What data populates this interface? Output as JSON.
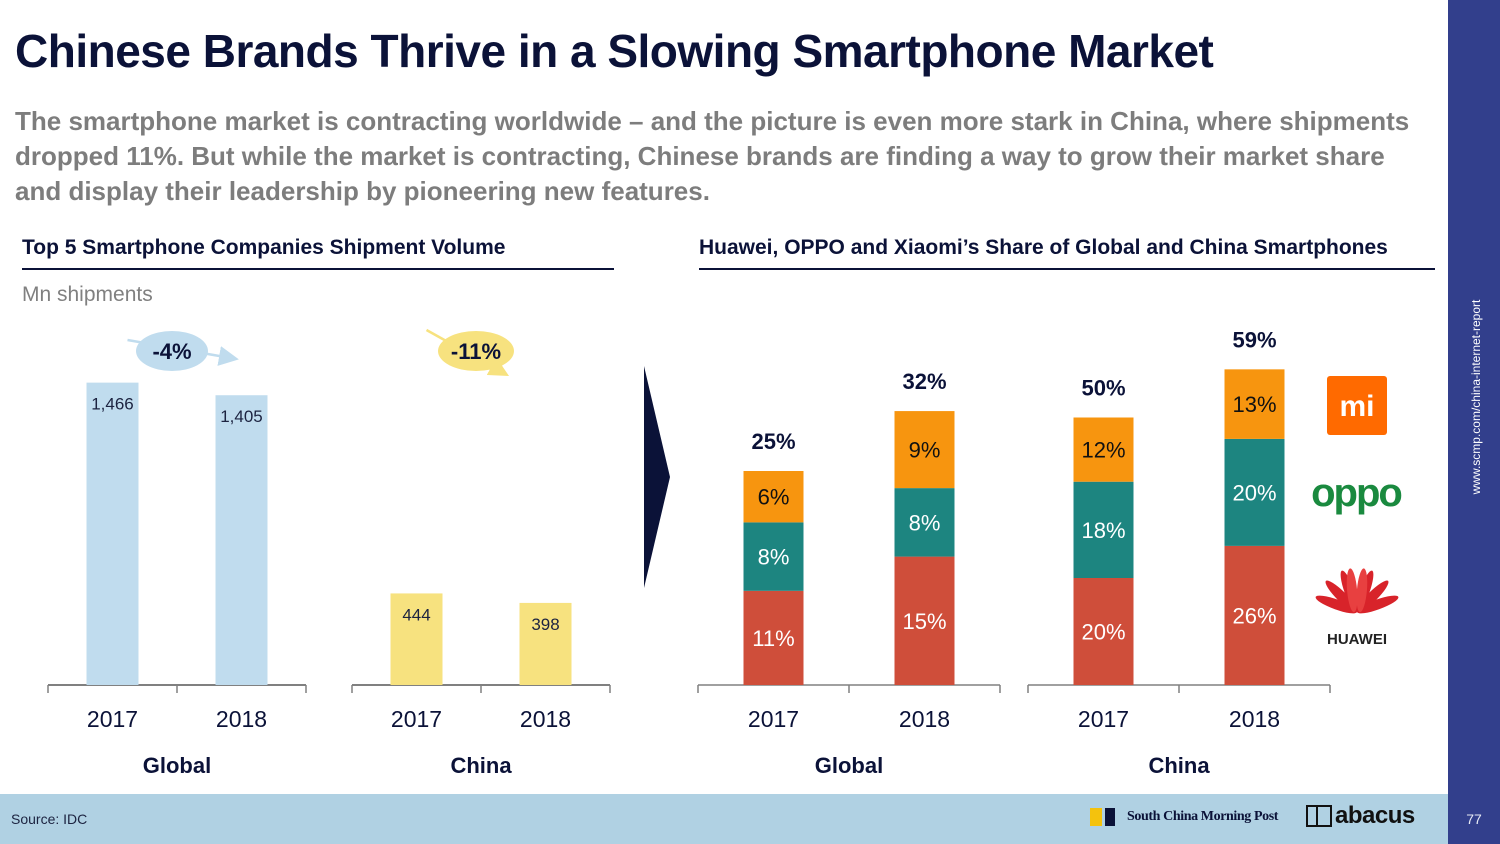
{
  "page": {
    "title": "Chinese Brands Thrive in a Slowing Smartphone Market",
    "subtitle": "The smartphone market is contracting worldwide – and the picture is even more stark in China, where shipments dropped 11%. But while the market is contracting, Chinese brands are finding a way to grow their market share and display their leadership by pioneering new features.",
    "sidebar_url": "www.scmp.com/china-internet-report",
    "source": "Source: IDC",
    "page_number": "77",
    "footer_brand": "South China Morning Post",
    "footer_brand2": "abacus",
    "colors": {
      "navy": "#0b1238",
      "sidebar": "#323f8c",
      "footer": "#b0d1e3",
      "global_bar": "#c0dcee",
      "china_bar": "#f7e27f",
      "huawei": "#cf4e3a",
      "oppo": "#1d8580",
      "xiaomi": "#f7950f"
    }
  },
  "chart_data": [
    {
      "type": "bar",
      "title": "Top 5 Smartphone Companies Shipment Volume",
      "ylabel": "Mn shipments",
      "ylim": [
        0,
        1600
      ],
      "groups": [
        {
          "name": "Global",
          "categories": [
            "2017",
            "2018"
          ],
          "values": [
            1466,
            1405
          ],
          "value_labels": [
            "1,466",
            "1,405"
          ],
          "change_label": "-4%",
          "color": "#c0dcee",
          "bubble_color": "#c0dcee"
        },
        {
          "name": "China",
          "categories": [
            "2017",
            "2018"
          ],
          "values": [
            444,
            398
          ],
          "value_labels": [
            "444",
            "398"
          ],
          "change_label": "-11%",
          "color": "#f7e27f",
          "bubble_color": "#f7e27f"
        }
      ]
    },
    {
      "type": "bar",
      "stacked": true,
      "title": "Huawei, OPPO and Xiaomi’s Share of Global and China Smartphones",
      "ylim": [
        0,
        70
      ],
      "series": [
        {
          "name": "Huawei",
          "color": "#cf4e3a",
          "label_color": "#ffffff"
        },
        {
          "name": "OPPO",
          "color": "#1d8580",
          "label_color": "#ffffff"
        },
        {
          "name": "Xiaomi",
          "color": "#f7950f",
          "label_color": "#111111"
        }
      ],
      "groups": [
        {
          "name": "Global",
          "categories": [
            "2017",
            "2018"
          ],
          "values": {
            "Huawei": [
              11,
              15
            ],
            "OPPO": [
              8,
              8
            ],
            "Xiaomi": [
              6,
              9
            ]
          },
          "totals": [
            "25%",
            "32%"
          ]
        },
        {
          "name": "China",
          "categories": [
            "2017",
            "2018"
          ],
          "values": {
            "Huawei": [
              20,
              26
            ],
            "OPPO": [
              18,
              20
            ],
            "Xiaomi": [
              12,
              13
            ]
          },
          "totals": [
            "50%",
            "59%"
          ]
        }
      ],
      "legend": {
        "placement": "right",
        "entries": [
          "Xiaomi (mi logo)",
          "OPPO",
          "HUAWEI"
        ],
        "oppo_logo_text": "oppo",
        "xiaomi_logo_text": "mi",
        "huawei_logo_text": "HUAWEI"
      }
    }
  ]
}
